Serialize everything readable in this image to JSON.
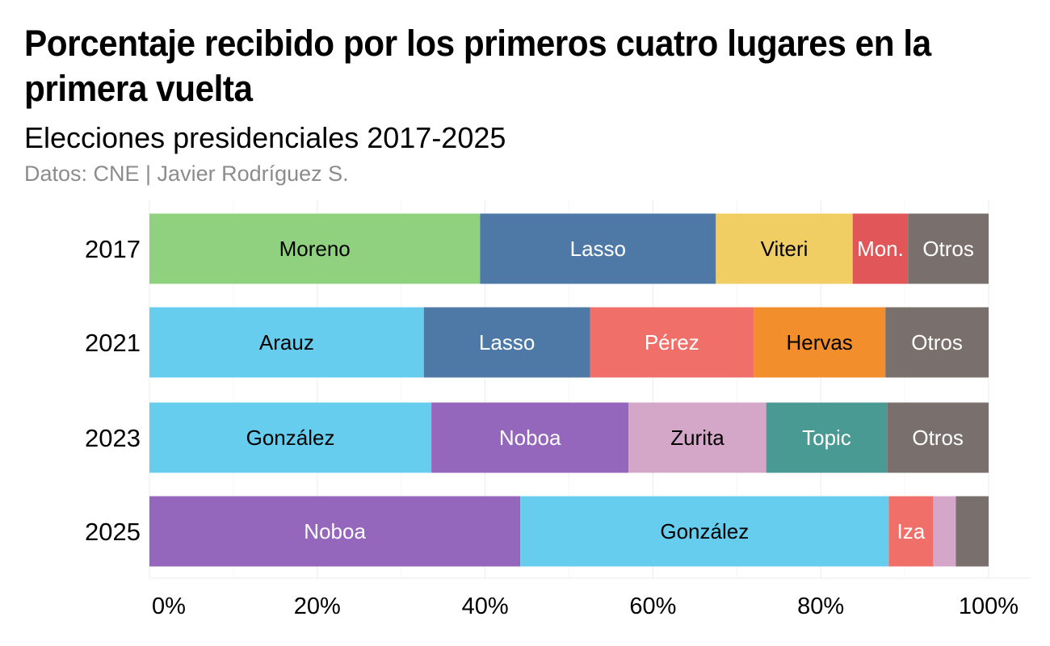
{
  "chart_data": {
    "type": "bar",
    "orientation": "horizontal",
    "stacked": "percent",
    "title": "Porcentaje recibido por los primeros cuatro lugares en la primera vuelta",
    "subtitle": "Elecciones presidenciales 2017-2025",
    "caption": "Datos: CNE | Javier Rodríguez S.",
    "xlim": [
      0,
      100
    ],
    "xticks": [
      0,
      20,
      40,
      60,
      80,
      100
    ],
    "xtick_labels": [
      "0%",
      "20%",
      "40%",
      "60%",
      "80%",
      "100%"
    ],
    "grid": true,
    "rows": [
      {
        "year": "2017",
        "segments": [
          {
            "label": "Moreno",
            "value": 39.4,
            "color": "#8fd17e",
            "text_color": "#000000"
          },
          {
            "label": "Lasso",
            "value": 28.1,
            "color": "#4e79a7",
            "text_color": "#ffffff"
          },
          {
            "label": "Viteri",
            "value": 16.3,
            "color": "#f1ce63",
            "text_color": "#000000"
          },
          {
            "label": "Mon.",
            "value": 6.6,
            "color": "#e15759",
            "text_color": "#ffffff"
          },
          {
            "label": "Otros",
            "value": 9.6,
            "color": "#79706e",
            "text_color": "#ffffff"
          }
        ]
      },
      {
        "year": "2021",
        "segments": [
          {
            "label": "Arauz",
            "value": 32.7,
            "color": "#67cdee",
            "text_color": "#000000"
          },
          {
            "label": "Lasso",
            "value": 19.8,
            "color": "#4e79a7",
            "text_color": "#ffffff"
          },
          {
            "label": "Pérez",
            "value": 19.5,
            "color": "#f07069",
            "text_color": "#ffffff"
          },
          {
            "label": "Hervas",
            "value": 15.7,
            "color": "#f28e2b",
            "text_color": "#000000"
          },
          {
            "label": "Otros",
            "value": 12.3,
            "color": "#79706e",
            "text_color": "#ffffff"
          }
        ]
      },
      {
        "year": "2023",
        "segments": [
          {
            "label": "González",
            "value": 33.6,
            "color": "#67cdee",
            "text_color": "#000000"
          },
          {
            "label": "Noboa",
            "value": 23.5,
            "color": "#9467bd",
            "text_color": "#ffffff"
          },
          {
            "label": "Zurita",
            "value": 16.4,
            "color": "#d4a6c8",
            "text_color": "#000000"
          },
          {
            "label": "Topic",
            "value": 14.4,
            "color": "#4a9a94",
            "text_color": "#ffffff"
          },
          {
            "label": "Otros",
            "value": 12.1,
            "color": "#79706e",
            "text_color": "#ffffff"
          }
        ]
      },
      {
        "year": "2025",
        "segments": [
          {
            "label": "Noboa",
            "value": 44.2,
            "color": "#9467bd",
            "text_color": "#ffffff"
          },
          {
            "label": "González",
            "value": 43.9,
            "color": "#67cdee",
            "text_color": "#000000"
          },
          {
            "label": "Iza",
            "value": 5.3,
            "color": "#f07069",
            "text_color": "#ffffff"
          },
          {
            "label": "",
            "value": 2.7,
            "color": "#d4a6c8",
            "text_color": "#000000"
          },
          {
            "label": "",
            "value": 3.9,
            "color": "#79706e",
            "text_color": "#ffffff"
          }
        ]
      }
    ]
  }
}
